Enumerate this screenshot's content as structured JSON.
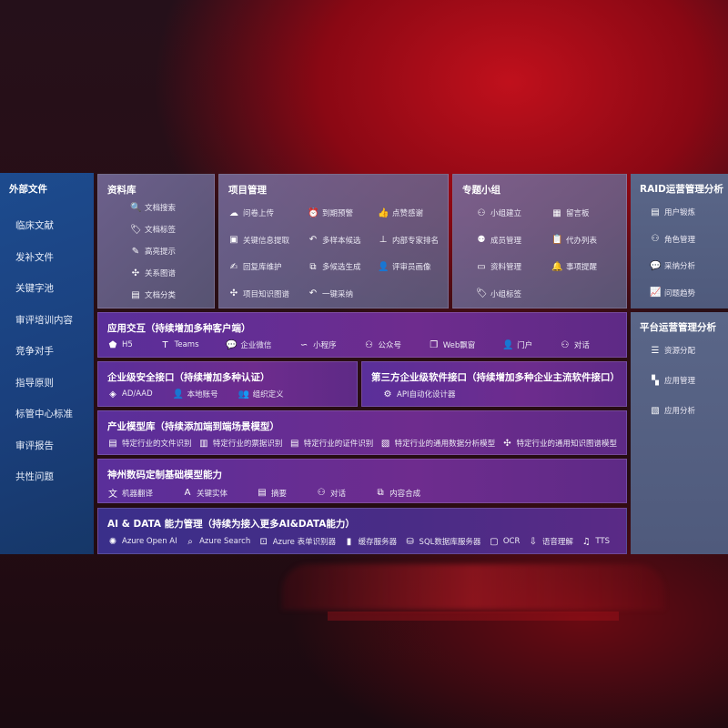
{
  "sidebar": {
    "title": "外部文件",
    "items": [
      "临床文献",
      "发补文件",
      "关键字池",
      "审评培训内容",
      "竞争对手",
      "指导原则",
      "标管中心标准",
      "审评报告",
      "共性问题"
    ]
  },
  "library": {
    "title": "资料库",
    "items": [
      {
        "icon": "doc-search",
        "label": "文档搜索"
      },
      {
        "icon": "tag",
        "label": "文档标签"
      },
      {
        "icon": "pen",
        "label": "高亮提示"
      },
      {
        "icon": "graph",
        "label": "关系图谱"
      },
      {
        "icon": "doc-classify",
        "label": "文档分类"
      }
    ]
  },
  "project": {
    "title": "项目管理",
    "items": [
      {
        "icon": "cloud-upload",
        "label": "问卷上传"
      },
      {
        "icon": "alarm",
        "label": "到期预警"
      },
      {
        "icon": "thumbs-up",
        "label": "点赞感谢"
      },
      {
        "icon": "info-window",
        "label": "关键信息提取"
      },
      {
        "icon": "reply",
        "label": "多样本候选"
      },
      {
        "icon": "ranking",
        "label": "内部专家排名"
      },
      {
        "icon": "edit",
        "label": "回复库维护"
      },
      {
        "icon": "puzzle",
        "label": "多候选生成"
      },
      {
        "icon": "user",
        "label": "评审员画像"
      },
      {
        "icon": "graph",
        "label": "项目知识图谱"
      },
      {
        "icon": "reply",
        "label": "一键采纳"
      }
    ]
  },
  "group": {
    "title": "专题小组",
    "items": [
      {
        "icon": "users",
        "label": "小组建立"
      },
      {
        "icon": "bbs",
        "label": "留言板"
      },
      {
        "icon": "user-add",
        "label": "成员管理"
      },
      {
        "icon": "clipboard",
        "label": "代办列表"
      },
      {
        "icon": "folder",
        "label": "资料管理"
      },
      {
        "icon": "bell",
        "label": "事项提醒"
      },
      {
        "icon": "tag",
        "label": "小组标签"
      }
    ]
  },
  "raid": {
    "title": "RAID运营管理分析",
    "items": [
      {
        "icon": "id-card",
        "label": "用户锻炼"
      },
      {
        "icon": "users",
        "label": "角色管理"
      },
      {
        "icon": "qa",
        "label": "采纳分析"
      },
      {
        "icon": "trend",
        "label": "问题趋势"
      }
    ]
  },
  "platform": {
    "title": "平台运营管理分析",
    "items": [
      {
        "icon": "checklist",
        "label": "资源分配"
      },
      {
        "icon": "apps",
        "label": "应用管理"
      },
      {
        "icon": "chart",
        "label": "应用分析"
      }
    ]
  },
  "interaction": {
    "title": "应用交互（持续增加多种客户端）",
    "items": [
      {
        "icon": "html5",
        "label": "H5"
      },
      {
        "icon": "teams",
        "label": "Teams"
      },
      {
        "icon": "wechat",
        "label": "企业微信"
      },
      {
        "icon": "miniapp",
        "label": "小程序"
      },
      {
        "icon": "official-account",
        "label": "公众号"
      },
      {
        "icon": "window",
        "label": "Web飘窗"
      },
      {
        "icon": "portal",
        "label": "门户"
      },
      {
        "icon": "chat",
        "label": "对话"
      }
    ]
  },
  "security": {
    "title": "企业级安全接口（持续增加多种认证）",
    "items": [
      {
        "icon": "ad",
        "label": "AD/AAD"
      },
      {
        "icon": "local-account",
        "label": "本地账号"
      },
      {
        "icon": "org",
        "label": "组织定义"
      }
    ]
  },
  "thirdparty": {
    "title": "第三方企业级软件接口（持续增加多种企业主流软件接口）",
    "items": [
      {
        "icon": "gear",
        "label": "API自动化设计器"
      }
    ]
  },
  "industry": {
    "title": "产业模型库（持续添加端到端场景模型）",
    "items": [
      {
        "icon": "file",
        "label": "特定行业的文件识别"
      },
      {
        "icon": "receipt",
        "label": "特定行业的票据识别"
      },
      {
        "icon": "id-card",
        "label": "特定行业的证件识别"
      },
      {
        "icon": "chart",
        "label": "特定行业的通用数据分析模型"
      },
      {
        "icon": "graph",
        "label": "特定行业的通用知识图谱模型"
      }
    ]
  },
  "basemodel": {
    "title": "神州数码定制基础模型能力",
    "items": [
      {
        "icon": "translate",
        "label": "机器翻译"
      },
      {
        "icon": "entity",
        "label": "关键实体"
      },
      {
        "icon": "summary",
        "label": "摘要"
      },
      {
        "icon": "chat",
        "label": "对话"
      },
      {
        "icon": "puzzle",
        "label": "内容合成"
      }
    ]
  },
  "aidata": {
    "title": "AI & DATA 能力管理（持续为接入更多AI&DATA能力）",
    "items": [
      {
        "icon": "openai",
        "label": "Azure Open AI"
      },
      {
        "icon": "search",
        "label": "Azure Search"
      },
      {
        "icon": "form-recognizer",
        "label": "Azure 表单识别器"
      },
      {
        "icon": "cache",
        "label": "缓存服务器"
      },
      {
        "icon": "database",
        "label": "SQL数据库服务器"
      },
      {
        "icon": "ocr",
        "label": "OCR"
      },
      {
        "icon": "speech",
        "label": "语音理解"
      },
      {
        "icon": "tts",
        "label": "TTS"
      }
    ]
  }
}
